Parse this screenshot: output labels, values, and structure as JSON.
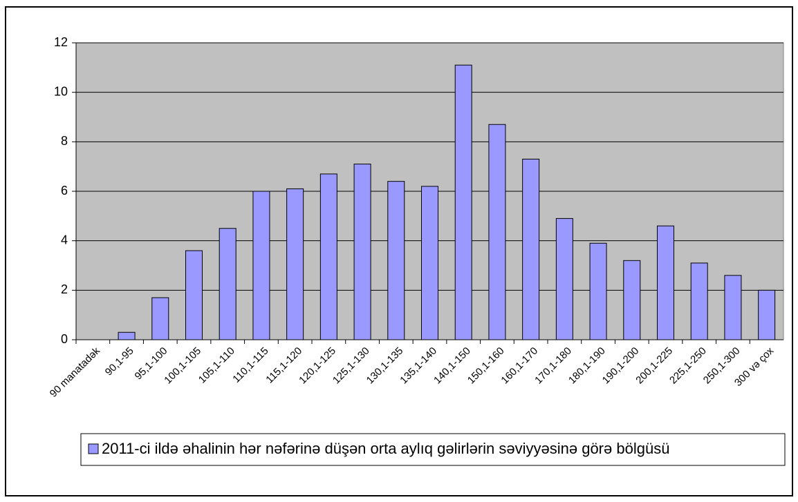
{
  "chart_data": {
    "type": "bar",
    "categories": [
      "90 manatadək",
      "90,1-95",
      "95,1-100",
      "100,1-105",
      "105,1-110",
      "110,1-115",
      "115,1-120",
      "120,1-125",
      "125,1-130",
      "130,1-135",
      "135,1-140",
      "140,1-150",
      "150,1-160",
      "160,1-170",
      "170,1-180",
      "180,1-190",
      "190,1-200",
      "200,1-225",
      "225,1-250",
      "250,1-300",
      "300 və çox"
    ],
    "series": [
      {
        "name": "2011-ci ildə əhalinin hər nəfərinə düşən orta aylıq gəlirlərin səviyyəsinə görə bölgüsü",
        "color": "#9999ff",
        "values": [
          0,
          0.3,
          1.7,
          3.6,
          4.5,
          6.0,
          6.1,
          6.7,
          7.1,
          6.4,
          6.2,
          11.1,
          8.7,
          7.3,
          4.9,
          3.9,
          3.2,
          4.6,
          3.1,
          2.6,
          2.0
        ]
      }
    ],
    "ylim": [
      0,
      12
    ],
    "yticks": [
      0,
      2,
      4,
      6,
      8,
      10,
      12
    ],
    "grid": true,
    "legend": "bottom",
    "plot_background": "#c0c0c0"
  }
}
